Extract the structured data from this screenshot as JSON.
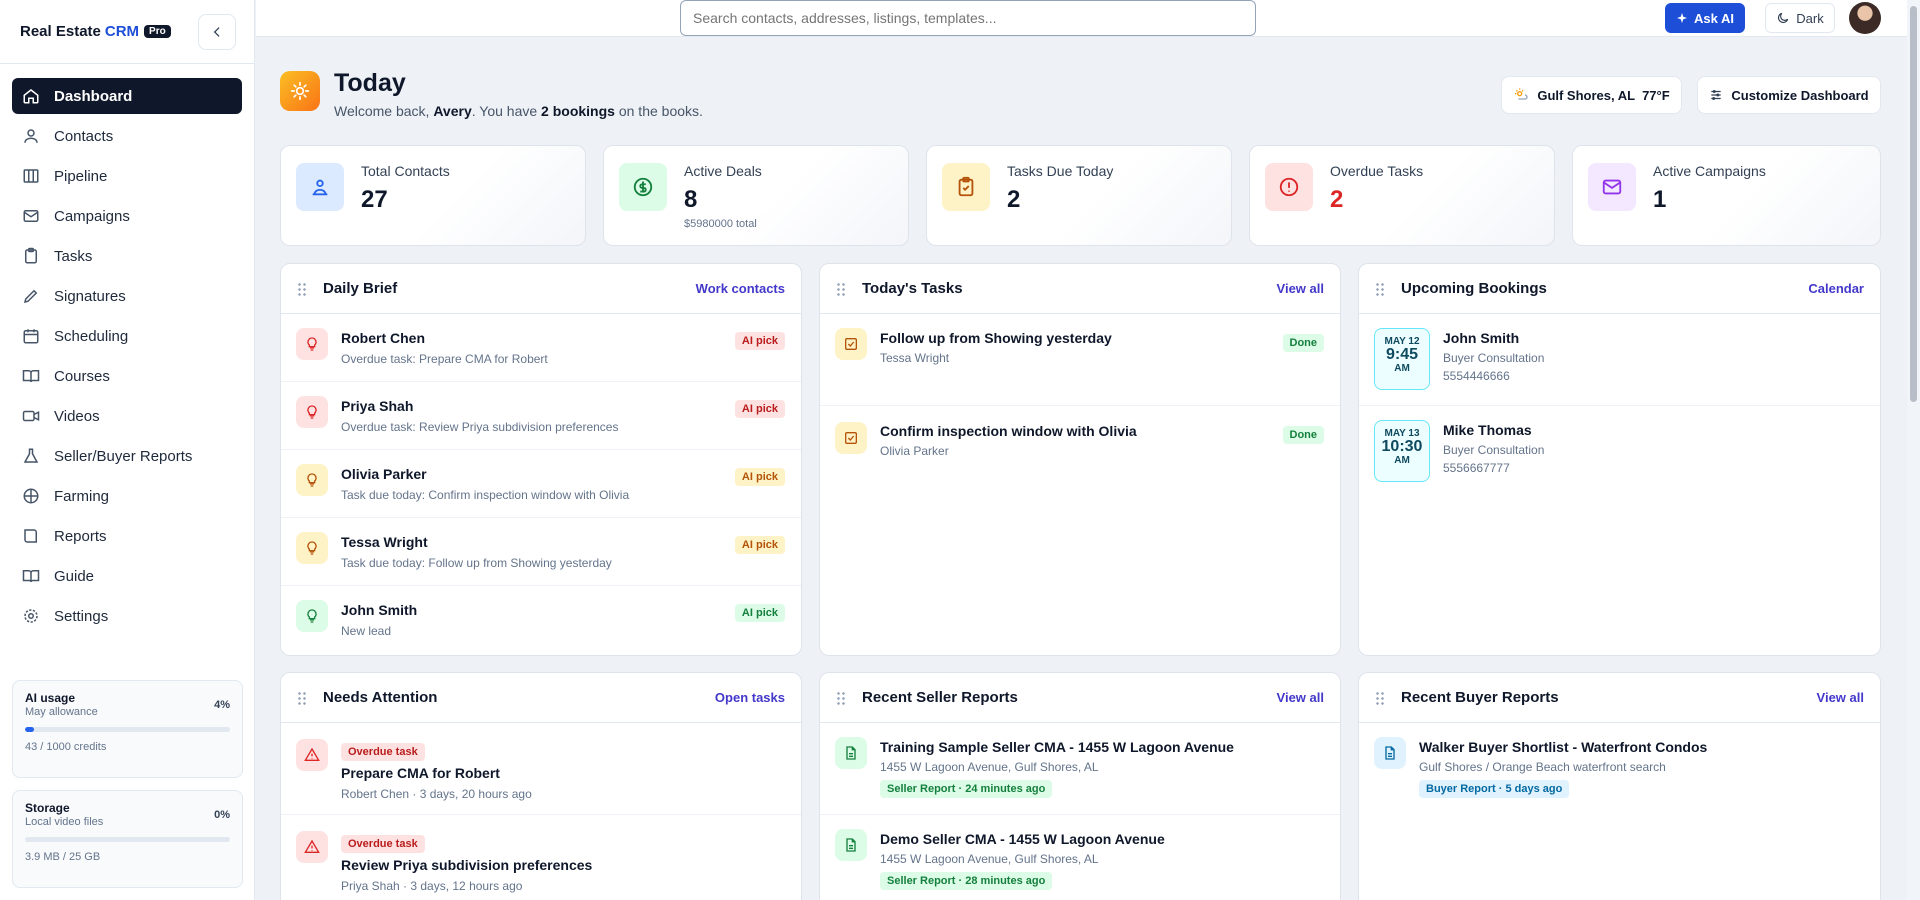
{
  "brand": {
    "name": "Real Estate",
    "accent": "CRM",
    "badge": "Pro"
  },
  "nav": [
    {
      "label": "Dashboard",
      "icon": "home-icon"
    },
    {
      "label": "Contacts",
      "icon": "contacts-icon"
    },
    {
      "label": "Pipeline",
      "icon": "pipeline-icon"
    },
    {
      "label": "Campaigns",
      "icon": "mail-icon"
    },
    {
      "label": "Tasks",
      "icon": "clipboard-icon"
    },
    {
      "label": "Signatures",
      "icon": "pen-icon"
    },
    {
      "label": "Scheduling",
      "icon": "calendar-icon"
    },
    {
      "label": "Courses",
      "icon": "book-icon"
    },
    {
      "label": "Videos",
      "icon": "video-icon"
    },
    {
      "label": "Seller/Buyer Reports",
      "icon": "flask-icon"
    },
    {
      "label": "Farming",
      "icon": "globe-icon"
    },
    {
      "label": "Reports",
      "icon": "report-icon"
    },
    {
      "label": "Guide",
      "icon": "guide-icon"
    },
    {
      "label": "Settings",
      "icon": "gear-icon"
    }
  ],
  "usage": {
    "ai": {
      "title": "AI usage",
      "sub": "May allowance",
      "pct": "4%",
      "fraction": 0.043,
      "meta": "43 / 1000 credits"
    },
    "storage": {
      "title": "Storage",
      "sub": "Local video files",
      "pct": "0%",
      "fraction": 0,
      "meta": "3.9 MB / 25 GB"
    }
  },
  "topbar": {
    "search_placeholder": "Search contacts, addresses, listings, templates...",
    "ask_ai": "Ask AI",
    "dark": "Dark"
  },
  "header": {
    "title": "Today",
    "welcome_pre": "Welcome back, ",
    "user": "Avery",
    "welcome_mid": ". You have ",
    "bookings": "2 bookings",
    "welcome_post": " on the books.",
    "weather": "Gulf Shores, AL  77°F",
    "customize": "Customize Dashboard"
  },
  "stats": [
    {
      "label": "Total Contacts",
      "value": "27",
      "sub": "",
      "icon": "contacts-icon"
    },
    {
      "label": "Active Deals",
      "value": "8",
      "sub": "$5980000 total",
      "icon": "dollar-icon"
    },
    {
      "label": "Tasks Due Today",
      "value": "2",
      "sub": "",
      "icon": "clipboard-check-icon"
    },
    {
      "label": "Overdue Tasks",
      "value": "2",
      "sub": "",
      "icon": "alert-circle-icon"
    },
    {
      "label": "Active Campaigns",
      "value": "1",
      "sub": "",
      "icon": "mail-icon"
    }
  ],
  "daily_brief": {
    "title": "Daily Brief",
    "link": "Work contacts",
    "items": [
      {
        "name": "Robert Chen",
        "sub": "Overdue task: Prepare CMA for Robert",
        "badge": "AI pick"
      },
      {
        "name": "Priya Shah",
        "sub": "Overdue task: Review Priya subdivision preferences",
        "badge": "AI pick"
      },
      {
        "name": "Olivia Parker",
        "sub": "Task due today: Confirm inspection window with Olivia",
        "badge": "AI pick"
      },
      {
        "name": "Tessa Wright",
        "sub": "Task due today: Follow up from Showing yesterday",
        "badge": "AI pick"
      },
      {
        "name": "John Smith",
        "sub": "New lead",
        "badge": "AI pick"
      }
    ]
  },
  "todays_tasks": {
    "title": "Today's Tasks",
    "link": "View all",
    "items": [
      {
        "title": "Follow up from Showing yesterday",
        "sub": "Tessa Wright",
        "badge": "Done"
      },
      {
        "title": "Confirm inspection window with Olivia",
        "sub": "Olivia Parker",
        "badge": "Done"
      }
    ]
  },
  "bookings": {
    "title": "Upcoming Bookings",
    "link": "Calendar",
    "items": [
      {
        "month": "MAY 12",
        "time": "9:45",
        "ampm": "AM",
        "name": "John Smith",
        "type": "Buyer Consultation",
        "phone": "5554446666"
      },
      {
        "month": "MAY 13",
        "time": "10:30",
        "ampm": "AM",
        "name": "Mike Thomas",
        "type": "Buyer Consultation",
        "phone": "5556667777"
      }
    ]
  },
  "needs_attention": {
    "title": "Needs Attention",
    "link": "Open tasks",
    "items": [
      {
        "tag": "Overdue task",
        "title": "Prepare CMA for Robert",
        "sub": "Robert Chen · 3 days, 20 hours ago"
      },
      {
        "tag": "Overdue task",
        "title": "Review Priya subdivision preferences",
        "sub": "Priya Shah · 3 days, 12 hours ago"
      }
    ]
  },
  "seller_reports": {
    "title": "Recent Seller Reports",
    "link": "View all",
    "items": [
      {
        "title": "Training Sample Seller CMA - 1455 W Lagoon Avenue",
        "sub": "1455 W Lagoon Avenue, Gulf Shores, AL",
        "pill": "Seller Report · 24 minutes ago"
      },
      {
        "title": "Demo Seller CMA - 1455 W Lagoon Avenue",
        "sub": "1455 W Lagoon Avenue, Gulf Shores, AL",
        "pill": "Seller Report · 28 minutes ago"
      }
    ]
  },
  "buyer_reports": {
    "title": "Recent Buyer Reports",
    "link": "View all",
    "items": [
      {
        "title": "Walker Buyer Shortlist - Waterfront Condos",
        "sub": "Gulf Shores / Orange Beach waterfront search",
        "pill": "Buyer Report · 5 days ago"
      }
    ]
  },
  "colors": {
    "accent": "#1d4ed8",
    "link": "#4338ca",
    "nav_active": "#0f172a",
    "danger": "#dc2626",
    "success": "#15803d",
    "warning": "#b45309"
  }
}
